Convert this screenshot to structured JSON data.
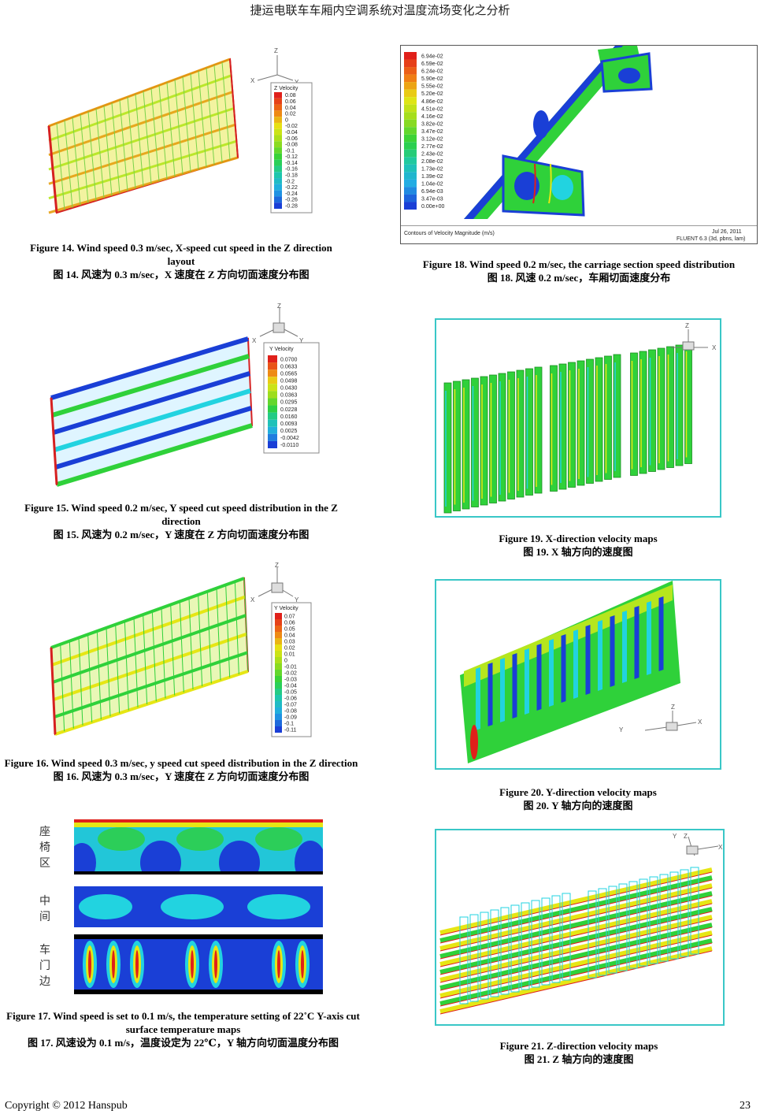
{
  "header": {
    "title": "捷运电联车车厢内空调系统对温度流场变化之分析"
  },
  "figures": {
    "f14": {
      "caption_en": "Figure 14. Wind speed 0.3 m/sec, X-speed cut speed in the Z direction layout",
      "caption_zh": "图 14.  风速为 0.3 m/sec，X 速度在 Z 方向切面速度分布图",
      "legend_title": "Z Velocity",
      "legend_values": [
        "0.08",
        "0.06",
        "0.04",
        "0.02",
        "0",
        "-0.02",
        "-0.04",
        "-0.06",
        "-0.08",
        "-0.1",
        "-0.12",
        "-0.14",
        "-0.16",
        "-0.18",
        "-0.2",
        "-0.22",
        "-0.24",
        "-0.26",
        "-0.28"
      ]
    },
    "f15": {
      "caption_en": "Figure 15. Wind speed 0.2 m/sec, Y speed cut speed distribution in the Z direction",
      "caption_zh": "图 15.  风速为 0.2 m/sec，Y 速度在 Z 方向切面速度分布图",
      "legend_title": "Y Velocity",
      "legend_values": [
        "0.0700",
        "0.0633",
        "0.0565",
        "0.0498",
        "0.0430",
        "0.0363",
        "0.0295",
        "0.0228",
        "0.0160",
        "0.0093",
        "0.0025",
        "-0.0042",
        "-0.0110"
      ]
    },
    "f16": {
      "caption_en": "Figure 16. Wind speed 0.3 m/sec, y speed cut speed distribution in the Z direction",
      "caption_zh": "图 16.  风速为 0.3 m/sec，Y 速度在 Z 方向切面速度分布图",
      "legend_title": "Y Velocity",
      "legend_values": [
        "0.07",
        "0.06",
        "0.05",
        "0.04",
        "0.03",
        "0.02",
        "0.01",
        "0",
        "-0.01",
        "-0.02",
        "-0.03",
        "-0.04",
        "-0.05",
        "-0.06",
        "-0.07",
        "-0.08",
        "-0.09",
        "-0.1",
        "-0.11"
      ]
    },
    "f17": {
      "caption_en": "Figure 17. Wind speed is set to 0.1 m/s, the temperature setting of 22˚C Y-axis cut surface temperature maps",
      "caption_zh": "图 17.  风速设为 0.1 m/s，温度设定为 22℃，Y 轴方向切面温度分布图",
      "labels": [
        "座椅区",
        "中间",
        "车门边"
      ]
    },
    "f18": {
      "caption_en": "Figure 18. Wind speed 0.2 m/sec, the carriage section speed distribution",
      "caption_zh": "图 18.  风速 0.2 m/sec，车厢切面速度分布",
      "legend_values": [
        "6.94e-02",
        "6.59e-02",
        "6.24e-02",
        "5.90e-02",
        "5.55e-02",
        "5.20e-02",
        "4.86e-02",
        "4.51e-02",
        "4.16e-02",
        "3.82e-02",
        "3.47e-02",
        "3.12e-02",
        "2.77e-02",
        "2.43e-02",
        "2.08e-02",
        "1.73e-02",
        "1.39e-02",
        "1.04e-02",
        "6.94e-03",
        "3.47e-03",
        "0.00e+00"
      ],
      "footer_left": "Contours of Velocity Magnitude (m/s)",
      "footer_date": "Jul 26, 2011",
      "footer_solver": "FLUENT 6.3 (3d, pbns, lam)"
    },
    "f19": {
      "caption_en": "Figure 19. X-direction velocity maps",
      "caption_zh": "图 19. X 轴方向的速度图"
    },
    "f20": {
      "caption_en": "Figure 20. Y-direction velocity maps",
      "caption_zh": "图 20. Y 轴方向的速度图"
    },
    "f21": {
      "caption_en": "Figure 21. Z-direction velocity maps",
      "caption_zh": "图 21. Z 轴方向的速度图"
    }
  },
  "axes": {
    "x": "X",
    "y": "Y",
    "z": "Z"
  },
  "footer": {
    "copyright": "Copyright © 2012 Hanspub",
    "page": "23"
  },
  "colors": {
    "frame": "#39c7c7",
    "red": "#e0201a",
    "green": "#2fd13a",
    "yellow": "#e6e614",
    "blue": "#1a3fd6",
    "cyan": "#22d3e0"
  }
}
